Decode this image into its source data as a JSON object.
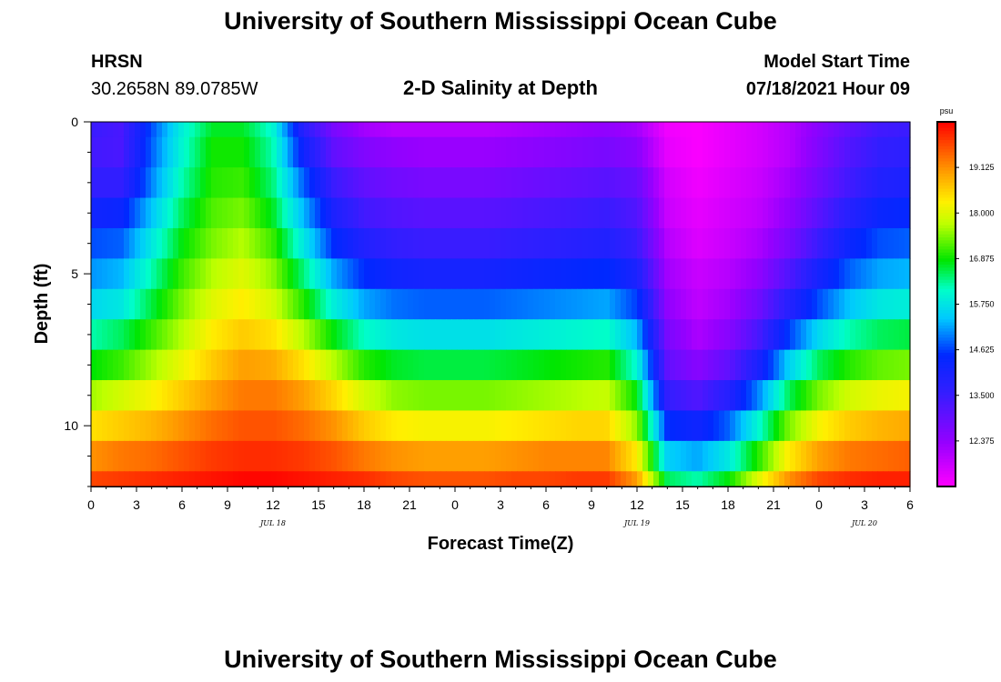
{
  "header": {
    "title": "University of Southern Mississippi Ocean Cube",
    "station": "HRSN",
    "coords": "30.2658N  89.0785W",
    "subtitle": "2-D Salinity at Depth",
    "model_label": "Model Start Time",
    "model_time": "07/18/2021 Hour 09"
  },
  "footer": {
    "title": "University of Southern Mississippi Ocean Cube"
  },
  "chart_data": {
    "type": "heatmap",
    "title": "2-D Salinity at Depth",
    "xlabel": "Forecast Time(Z)",
    "ylabel": "Depth (ft)",
    "x_range_hours": [
      0,
      54
    ],
    "y_range_ft": [
      0,
      12
    ],
    "x_tick_labels": [
      "0",
      "3",
      "6",
      "9",
      "12",
      "15",
      "18",
      "21",
      "0",
      "3",
      "6",
      "9",
      "12",
      "15",
      "18",
      "21",
      "0",
      "3",
      "6"
    ],
    "x_tick_hours": [
      0,
      3,
      6,
      9,
      12,
      15,
      18,
      21,
      24,
      27,
      30,
      33,
      36,
      39,
      42,
      45,
      48,
      51,
      54
    ],
    "date_labels": [
      {
        "label": "JUL 18",
        "hour": 12
      },
      {
        "label": "JUL 19",
        "hour": 36
      },
      {
        "label": "JUL 20",
        "hour": 51
      }
    ],
    "y_tick_labels": [
      "0",
      "5",
      "10"
    ],
    "y_tick_values": [
      0,
      5,
      10
    ],
    "colorbar": {
      "unit": "psu",
      "min": 11.25,
      "max": 20.25,
      "tick_labels": [
        "19.125",
        "18.000",
        "16.875",
        "15.750",
        "14.625",
        "13.500",
        "12.375"
      ],
      "tick_values": [
        19.125,
        18.0,
        16.875,
        15.75,
        14.625,
        13.5,
        12.375
      ]
    },
    "grid_hours": [
      0,
      2,
      4,
      6,
      8,
      10,
      12,
      14,
      16,
      18,
      20,
      22,
      24,
      26,
      28,
      30,
      32,
      34,
      36,
      38,
      40,
      42,
      44,
      46,
      48,
      50,
      52,
      54
    ],
    "grid_depths_ft": [
      0,
      1,
      2,
      3,
      4,
      5,
      6,
      7,
      8,
      9,
      10,
      11,
      12
    ],
    "salinity_psu": [
      [
        13.5,
        13.3,
        14.7,
        15.9,
        16.7,
        16.7,
        16.0,
        13.8,
        12.7,
        12.2,
        12.0,
        12.0,
        12.0,
        12.0,
        12.1,
        12.2,
        12.3,
        12.4,
        12.2,
        11.4,
        11.3,
        11.5,
        11.7,
        12.0,
        12.5,
        13.0,
        13.4,
        13.5
      ],
      [
        13.4,
        13.3,
        14.8,
        16.0,
        16.9,
        16.9,
        16.2,
        14.2,
        13.0,
        12.6,
        12.4,
        12.3,
        12.3,
        12.3,
        12.4,
        12.5,
        12.6,
        12.7,
        12.5,
        11.5,
        11.3,
        11.5,
        11.7,
        12.0,
        12.6,
        13.2,
        13.6,
        13.7
      ],
      [
        13.6,
        13.6,
        15.0,
        16.2,
        17.0,
        17.1,
        16.4,
        14.8,
        13.5,
        13.0,
        12.8,
        12.7,
        12.7,
        12.7,
        12.8,
        12.9,
        13.0,
        13.1,
        12.9,
        11.7,
        11.4,
        11.6,
        11.8,
        12.2,
        12.8,
        13.4,
        13.9,
        14.0
      ],
      [
        14.2,
        14.3,
        15.4,
        16.5,
        17.2,
        17.4,
        16.7,
        15.3,
        14.0,
        13.4,
        13.2,
        13.1,
        13.1,
        13.1,
        13.2,
        13.3,
        13.4,
        13.5,
        13.2,
        11.8,
        11.5,
        11.7,
        11.9,
        12.4,
        13.1,
        13.8,
        14.3,
        14.4
      ],
      [
        14.7,
        14.8,
        15.8,
        16.8,
        17.4,
        17.7,
        17.1,
        15.8,
        14.5,
        13.9,
        13.6,
        13.5,
        13.5,
        13.5,
        13.6,
        13.7,
        13.8,
        13.9,
        13.5,
        12.0,
        11.6,
        11.8,
        12.1,
        12.7,
        13.5,
        14.3,
        14.7,
        14.8
      ],
      [
        15.1,
        15.3,
        16.2,
        17.1,
        17.7,
        18.0,
        17.5,
        16.4,
        15.2,
        14.5,
        14.2,
        14.1,
        14.1,
        14.1,
        14.2,
        14.3,
        14.4,
        14.5,
        14.0,
        12.2,
        11.8,
        12.0,
        12.4,
        13.2,
        14.1,
        14.8,
        15.2,
        15.3
      ],
      [
        15.6,
        15.8,
        16.6,
        17.4,
        18.0,
        18.3,
        17.9,
        17.0,
        15.9,
        15.2,
        14.9,
        14.8,
        14.8,
        14.8,
        14.9,
        15.0,
        15.1,
        15.2,
        14.6,
        12.4,
        11.9,
        12.2,
        12.8,
        13.8,
        14.7,
        15.4,
        15.8,
        15.9
      ],
      [
        16.2,
        16.5,
        17.1,
        17.7,
        18.3,
        18.6,
        18.4,
        17.7,
        16.8,
        16.1,
        15.8,
        15.7,
        15.7,
        15.7,
        15.8,
        15.9,
        16.0,
        16.1,
        15.3,
        12.7,
        12.1,
        12.5,
        13.3,
        14.6,
        15.6,
        16.2,
        16.5,
        16.6
      ],
      [
        16.8,
        17.1,
        17.6,
        18.1,
        18.6,
        19.0,
        18.9,
        18.4,
        17.7,
        17.0,
        16.7,
        16.6,
        16.6,
        16.6,
        16.7,
        16.8,
        16.9,
        17.0,
        16.0,
        13.0,
        12.5,
        13.0,
        14.0,
        15.5,
        16.5,
        17.0,
        17.3,
        17.4
      ],
      [
        17.6,
        17.9,
        18.2,
        18.6,
        19.0,
        19.3,
        19.3,
        19.0,
        18.5,
        17.9,
        17.5,
        17.4,
        17.4,
        17.4,
        17.5,
        17.6,
        17.7,
        17.8,
        16.8,
        13.6,
        13.2,
        13.8,
        15.0,
        16.5,
        17.4,
        17.9,
        18.1,
        18.2
      ],
      [
        18.4,
        18.6,
        18.8,
        19.1,
        19.4,
        19.6,
        19.6,
        19.4,
        19.1,
        18.6,
        18.3,
        18.2,
        18.2,
        18.2,
        18.3,
        18.4,
        18.5,
        18.5,
        17.5,
        14.5,
        14.2,
        14.8,
        16.0,
        17.4,
        18.2,
        18.6,
        18.8,
        18.9
      ],
      [
        19.1,
        19.3,
        19.4,
        19.6,
        19.8,
        19.9,
        19.9,
        19.8,
        19.6,
        19.3,
        19.1,
        19.0,
        19.0,
        19.0,
        19.1,
        19.2,
        19.2,
        19.2,
        18.3,
        15.5,
        15.2,
        15.8,
        17.0,
        18.3,
        19.0,
        19.3,
        19.4,
        19.5
      ],
      [
        19.7,
        19.8,
        19.9,
        20.0,
        20.1,
        20.2,
        20.2,
        20.1,
        20.0,
        19.9,
        19.7,
        19.6,
        19.6,
        19.6,
        19.7,
        19.7,
        19.8,
        19.8,
        19.0,
        16.5,
        16.2,
        16.8,
        18.0,
        19.1,
        19.7,
        19.9,
        20.0,
        20.0
      ]
    ]
  }
}
